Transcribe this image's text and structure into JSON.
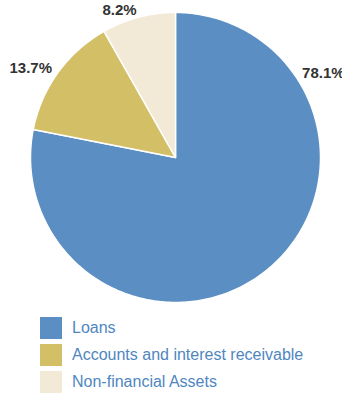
{
  "chart_data": {
    "type": "pie",
    "categories": [
      "Loans",
      "Accounts and interest receivable",
      "Non-financial Assets"
    ],
    "values": [
      78.1,
      13.7,
      8.2
    ],
    "value_labels": [
      "78.1%",
      "13.7%",
      "8.2%"
    ],
    "colors": [
      "#5b8ec3",
      "#d3bf66",
      "#f2ead6"
    ],
    "data_labels": true,
    "legend": "bottom"
  }
}
